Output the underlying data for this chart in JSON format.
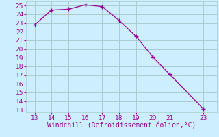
{
  "x": [
    13,
    14,
    15,
    16,
    17,
    18,
    19,
    20,
    21,
    23
  ],
  "y": [
    22.8,
    24.5,
    24.6,
    25.1,
    24.9,
    23.3,
    21.5,
    19.1,
    17.1,
    13.1
  ],
  "line_color": "#990099",
  "marker_color": "#990099",
  "bg_color": "#cceeff",
  "grid_color": "#aacccc",
  "xlabel": "Windchill (Refroidissement éolien,°C)",
  "xlabel_color": "#990099",
  "tick_color": "#990099",
  "xlim": [
    12.5,
    23.8
  ],
  "ylim": [
    12.7,
    25.5
  ],
  "xticks": [
    13,
    14,
    15,
    16,
    17,
    18,
    19,
    20,
    21,
    23
  ],
  "yticks": [
    13,
    14,
    15,
    16,
    17,
    18,
    19,
    20,
    21,
    22,
    23,
    24,
    25
  ],
  "xlabel_fontsize": 7.0,
  "tick_fontsize": 6.5
}
